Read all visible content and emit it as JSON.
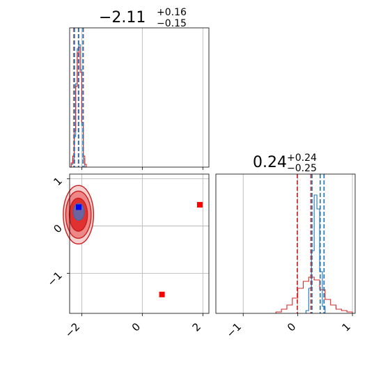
{
  "chart_data": [
    {
      "type": "histogram",
      "panel": "marginal-param-1",
      "title": {
        "value": "−2.11",
        "plus": "+0.16",
        "minus": "−0.15"
      },
      "xlim": [
        -2.4,
        2.2
      ],
      "ylim": [
        0,
        1.0
      ],
      "x_tick_values": [
        -2,
        0,
        2
      ],
      "grid": true,
      "series": [
        {
          "color": "#1f77b4",
          "bins": [
            -2.4,
            -2.35,
            -2.3,
            -2.25,
            -2.2,
            -2.15,
            -2.1,
            -2.05,
            -2.0,
            -1.95,
            -1.9,
            -1.85
          ],
          "counts": [
            0.0,
            0.02,
            0.06,
            0.22,
            0.6,
            0.85,
            0.88,
            0.7,
            0.3,
            0.06,
            0.0
          ]
        },
        {
          "color": "#d62728",
          "bins": [
            -2.4,
            -2.35,
            -2.3,
            -2.25,
            -2.2,
            -2.15,
            -2.1,
            -2.05,
            -2.0,
            -1.95,
            -1.9,
            -1.85
          ],
          "counts": [
            0.0,
            0.03,
            0.08,
            0.26,
            0.58,
            0.82,
            0.86,
            0.68,
            0.32,
            0.08,
            0.02
          ]
        }
      ],
      "dashed_lines": [
        {
          "x": -2.26,
          "color": "#d62728"
        },
        {
          "x": -2.11,
          "color": "#d62728"
        },
        {
          "x": -1.95,
          "color": "#d62728"
        },
        {
          "x": -2.24,
          "color": "#1f77b4"
        },
        {
          "x": -2.1,
          "color": "#1f77b4"
        },
        {
          "x": -1.96,
          "color": "#1f77b4"
        }
      ]
    },
    {
      "type": "scatter",
      "panel": "joint-param-1-vs-param-2",
      "xlim": [
        -2.4,
        2.2
      ],
      "ylim": [
        -1.85,
        1.1
      ],
      "x_tick_values": [
        -2,
        0,
        2
      ],
      "y_tick_values": [
        -1,
        0,
        1
      ],
      "x_tick_labels": [
        "−2",
        "0",
        "2"
      ],
      "y_tick_labels": [
        "−1",
        "0",
        "1"
      ],
      "grid": true,
      "contours_red": [
        {
          "cx": -2.11,
          "cy": 0.24,
          "rx": 0.5,
          "ry": 0.62,
          "fill": "#f8d0d0"
        },
        {
          "cx": -2.11,
          "cy": 0.24,
          "rx": 0.42,
          "ry": 0.5,
          "fill": "#ee8888"
        },
        {
          "cx": -2.11,
          "cy": 0.24,
          "rx": 0.3,
          "ry": 0.35,
          "fill": "#e03030"
        }
      ],
      "contours_blue": [
        {
          "cx": -2.1,
          "cy": 0.3,
          "rx": 0.18,
          "ry": 0.18,
          "fill": "#5a6fb5"
        }
      ],
      "markers": [
        {
          "x": -2.1,
          "y": 0.4,
          "color": "#0000ff"
        },
        {
          "x": 1.9,
          "y": 0.45,
          "color": "#ff0000"
        },
        {
          "x": 0.65,
          "y": -1.45,
          "color": "#ff0000"
        }
      ]
    },
    {
      "type": "histogram",
      "panel": "marginal-param-2",
      "title": {
        "value": "0.24",
        "plus": "+0.24",
        "minus": "−0.25"
      },
      "xlim": [
        -1.5,
        1.05
      ],
      "ylim": [
        0,
        1.0
      ],
      "x_tick_values": [
        -1,
        0,
        1
      ],
      "x_tick_labels": [
        "−1",
        "0",
        "1"
      ],
      "grid": true,
      "series": [
        {
          "color": "#1f77b4",
          "bins": [
            0.15,
            0.2,
            0.25,
            0.3,
            0.35,
            0.4,
            0.45,
            0.5
          ],
          "counts": [
            0.02,
            0.18,
            0.45,
            0.85,
            0.75,
            0.3,
            0.05
          ]
        },
        {
          "color": "#d62728",
          "bins": [
            -0.4,
            -0.3,
            -0.2,
            -0.1,
            0.0,
            0.1,
            0.2,
            0.3,
            0.4,
            0.5,
            0.6,
            0.7,
            0.8,
            0.9,
            1.0
          ],
          "counts": [
            0.01,
            0.03,
            0.06,
            0.11,
            0.18,
            0.23,
            0.26,
            0.24,
            0.17,
            0.1,
            0.06,
            0.03,
            0.02,
            0.01
          ]
        }
      ],
      "dashed_lines": [
        {
          "x": -0.01,
          "color": "#d62728"
        },
        {
          "x": 0.24,
          "color": "#d62728"
        },
        {
          "x": 0.48,
          "color": "#d62728"
        },
        {
          "x": 0.26,
          "color": "#1f77b4"
        },
        {
          "x": 0.41,
          "color": "#1f77b4"
        },
        {
          "x": 0.48,
          "color": "#1f77b4"
        }
      ]
    }
  ]
}
